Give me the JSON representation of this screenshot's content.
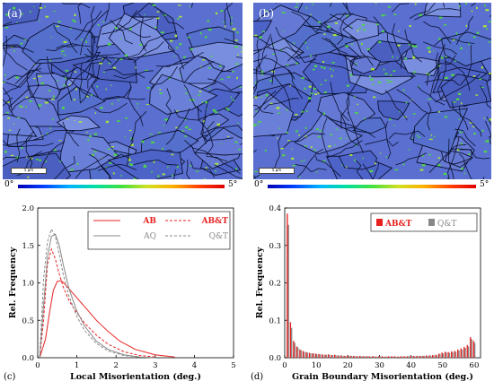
{
  "maps": [
    {
      "panel_label": "(a)",
      "scale_label": "5 µm",
      "cb_min": "0°",
      "cb_max": "5°"
    },
    {
      "panel_label": "(b)",
      "scale_label": "5 µm",
      "cb_min": "0°",
      "cb_max": "5°"
    }
  ],
  "colors": {
    "map_base": "#5a6fd0",
    "map_green": "#4fd24a",
    "boundary": "#0c1230",
    "red": "#e82020",
    "gray": "#888888"
  },
  "colorbar_stops": [
    "#0000b4",
    "#0040ff",
    "#00b4ff",
    "#00e0a0",
    "#40e040",
    "#d0e020",
    "#ffb000",
    "#ff4000",
    "#e00000"
  ],
  "chart_data": [
    {
      "type": "line",
      "panel_label": "(c)",
      "xlabel": "Local Misorientation (deg.)",
      "ylabel": "Rel. Frequency",
      "xlim": [
        0,
        5
      ],
      "ylim": [
        0,
        2.0
      ],
      "xticks": [
        "0",
        "1",
        "2",
        "3",
        "4",
        "5"
      ],
      "yticks": [
        "0.0",
        "0.5",
        "1.0",
        "1.5",
        "2.0"
      ],
      "legend_position": "top-right",
      "series": [
        {
          "name": "AB",
          "color": "#e82020",
          "dash": "solid",
          "x": [
            0.05,
            0.2,
            0.3,
            0.4,
            0.5,
            0.6,
            0.7,
            0.8,
            1.0,
            1.2,
            1.5,
            1.8,
            2.1,
            2.5,
            3.0,
            3.5
          ],
          "y": [
            0.0,
            0.25,
            0.6,
            0.9,
            1.02,
            1.03,
            0.98,
            0.92,
            0.8,
            0.68,
            0.5,
            0.35,
            0.22,
            0.11,
            0.04,
            0.01
          ]
        },
        {
          "name": "AB&T",
          "color": "#e82020",
          "dash": "dashed",
          "x": [
            0.05,
            0.15,
            0.25,
            0.35,
            0.45,
            0.55,
            0.65,
            0.8,
            1.0,
            1.2,
            1.5,
            1.8,
            2.2,
            2.6,
            3.0
          ],
          "y": [
            0.0,
            0.5,
            1.25,
            1.45,
            1.32,
            1.12,
            0.95,
            0.76,
            0.6,
            0.46,
            0.3,
            0.18,
            0.08,
            0.03,
            0.01
          ]
        },
        {
          "name": "AQ",
          "color": "#888888",
          "dash": "solid",
          "x": [
            0.05,
            0.15,
            0.25,
            0.35,
            0.45,
            0.55,
            0.65,
            0.8,
            1.0,
            1.2,
            1.5,
            1.8,
            2.2,
            2.6,
            3.0
          ],
          "y": [
            0.0,
            0.7,
            1.35,
            1.62,
            1.65,
            1.5,
            1.25,
            0.92,
            0.62,
            0.42,
            0.22,
            0.11,
            0.04,
            0.01,
            0.0
          ]
        },
        {
          "name": "Q&T",
          "color": "#888888",
          "dash": "dashed",
          "x": [
            0.05,
            0.15,
            0.25,
            0.35,
            0.45,
            0.55,
            0.65,
            0.8,
            1.0,
            1.2,
            1.5,
            1.8,
            2.2,
            2.6,
            3.0
          ],
          "y": [
            0.0,
            1.05,
            1.55,
            1.72,
            1.62,
            1.38,
            1.12,
            0.82,
            0.55,
            0.36,
            0.19,
            0.09,
            0.03,
            0.01,
            0.0
          ]
        }
      ]
    },
    {
      "type": "bar",
      "panel_label": "(d)",
      "xlabel": "Grain Boundary Misorientation (deg.)",
      "ylabel": "Rel. Frequency",
      "xlim": [
        0,
        62
      ],
      "ylim": [
        0,
        0.4
      ],
      "xticks": [
        "0",
        "10",
        "20",
        "30",
        "40",
        "50",
        "60"
      ],
      "yticks": [
        "0.0",
        "0.1",
        "0.2",
        "0.3",
        "0.4"
      ],
      "legend_position": "top-right",
      "bin_width": 1,
      "series": [
        {
          "name": "AB&T",
          "color": "#e82020",
          "x": [
            1,
            2,
            3,
            4,
            5,
            6,
            7,
            8,
            9,
            10,
            11,
            12,
            13,
            14,
            15,
            16,
            17,
            18,
            19,
            20,
            21,
            22,
            23,
            24,
            25,
            26,
            27,
            28,
            29,
            30,
            31,
            32,
            33,
            34,
            35,
            36,
            37,
            38,
            39,
            40,
            41,
            42,
            43,
            44,
            45,
            46,
            47,
            48,
            49,
            50,
            51,
            52,
            53,
            54,
            55,
            56,
            57,
            58,
            59,
            60
          ],
          "y": [
            0.385,
            0.095,
            0.045,
            0.03,
            0.022,
            0.018,
            0.015,
            0.013,
            0.012,
            0.011,
            0.01,
            0.009,
            0.008,
            0.009,
            0.007,
            0.008,
            0.006,
            0.006,
            0.005,
            0.006,
            0.005,
            0.005,
            0.004,
            0.005,
            0.004,
            0.004,
            0.004,
            0.004,
            0.003,
            0.004,
            0.004,
            0.003,
            0.004,
            0.004,
            0.004,
            0.003,
            0.004,
            0.004,
            0.004,
            0.004,
            0.005,
            0.005,
            0.005,
            0.005,
            0.006,
            0.006,
            0.007,
            0.008,
            0.011,
            0.014,
            0.016,
            0.015,
            0.017,
            0.018,
            0.022,
            0.025,
            0.029,
            0.034,
            0.055,
            0.045
          ]
        },
        {
          "name": "Q&T",
          "color": "#888888",
          "x": [
            1,
            2,
            3,
            4,
            5,
            6,
            7,
            8,
            9,
            10,
            11,
            12,
            13,
            14,
            15,
            16,
            17,
            18,
            19,
            20,
            21,
            22,
            23,
            24,
            25,
            26,
            27,
            28,
            29,
            30,
            31,
            32,
            33,
            34,
            35,
            36,
            37,
            38,
            39,
            40,
            41,
            42,
            43,
            44,
            45,
            46,
            47,
            48,
            49,
            50,
            51,
            52,
            53,
            54,
            55,
            56,
            57,
            58,
            59,
            60
          ],
          "y": [
            0.355,
            0.08,
            0.04,
            0.028,
            0.02,
            0.016,
            0.014,
            0.012,
            0.011,
            0.01,
            0.009,
            0.008,
            0.008,
            0.008,
            0.007,
            0.007,
            0.006,
            0.006,
            0.005,
            0.005,
            0.005,
            0.004,
            0.004,
            0.004,
            0.004,
            0.004,
            0.003,
            0.004,
            0.003,
            0.003,
            0.003,
            0.003,
            0.003,
            0.003,
            0.003,
            0.003,
            0.003,
            0.003,
            0.004,
            0.004,
            0.004,
            0.004,
            0.005,
            0.005,
            0.005,
            0.006,
            0.006,
            0.007,
            0.01,
            0.012,
            0.014,
            0.013,
            0.015,
            0.016,
            0.019,
            0.022,
            0.026,
            0.03,
            0.05,
            0.04
          ]
        }
      ]
    }
  ]
}
